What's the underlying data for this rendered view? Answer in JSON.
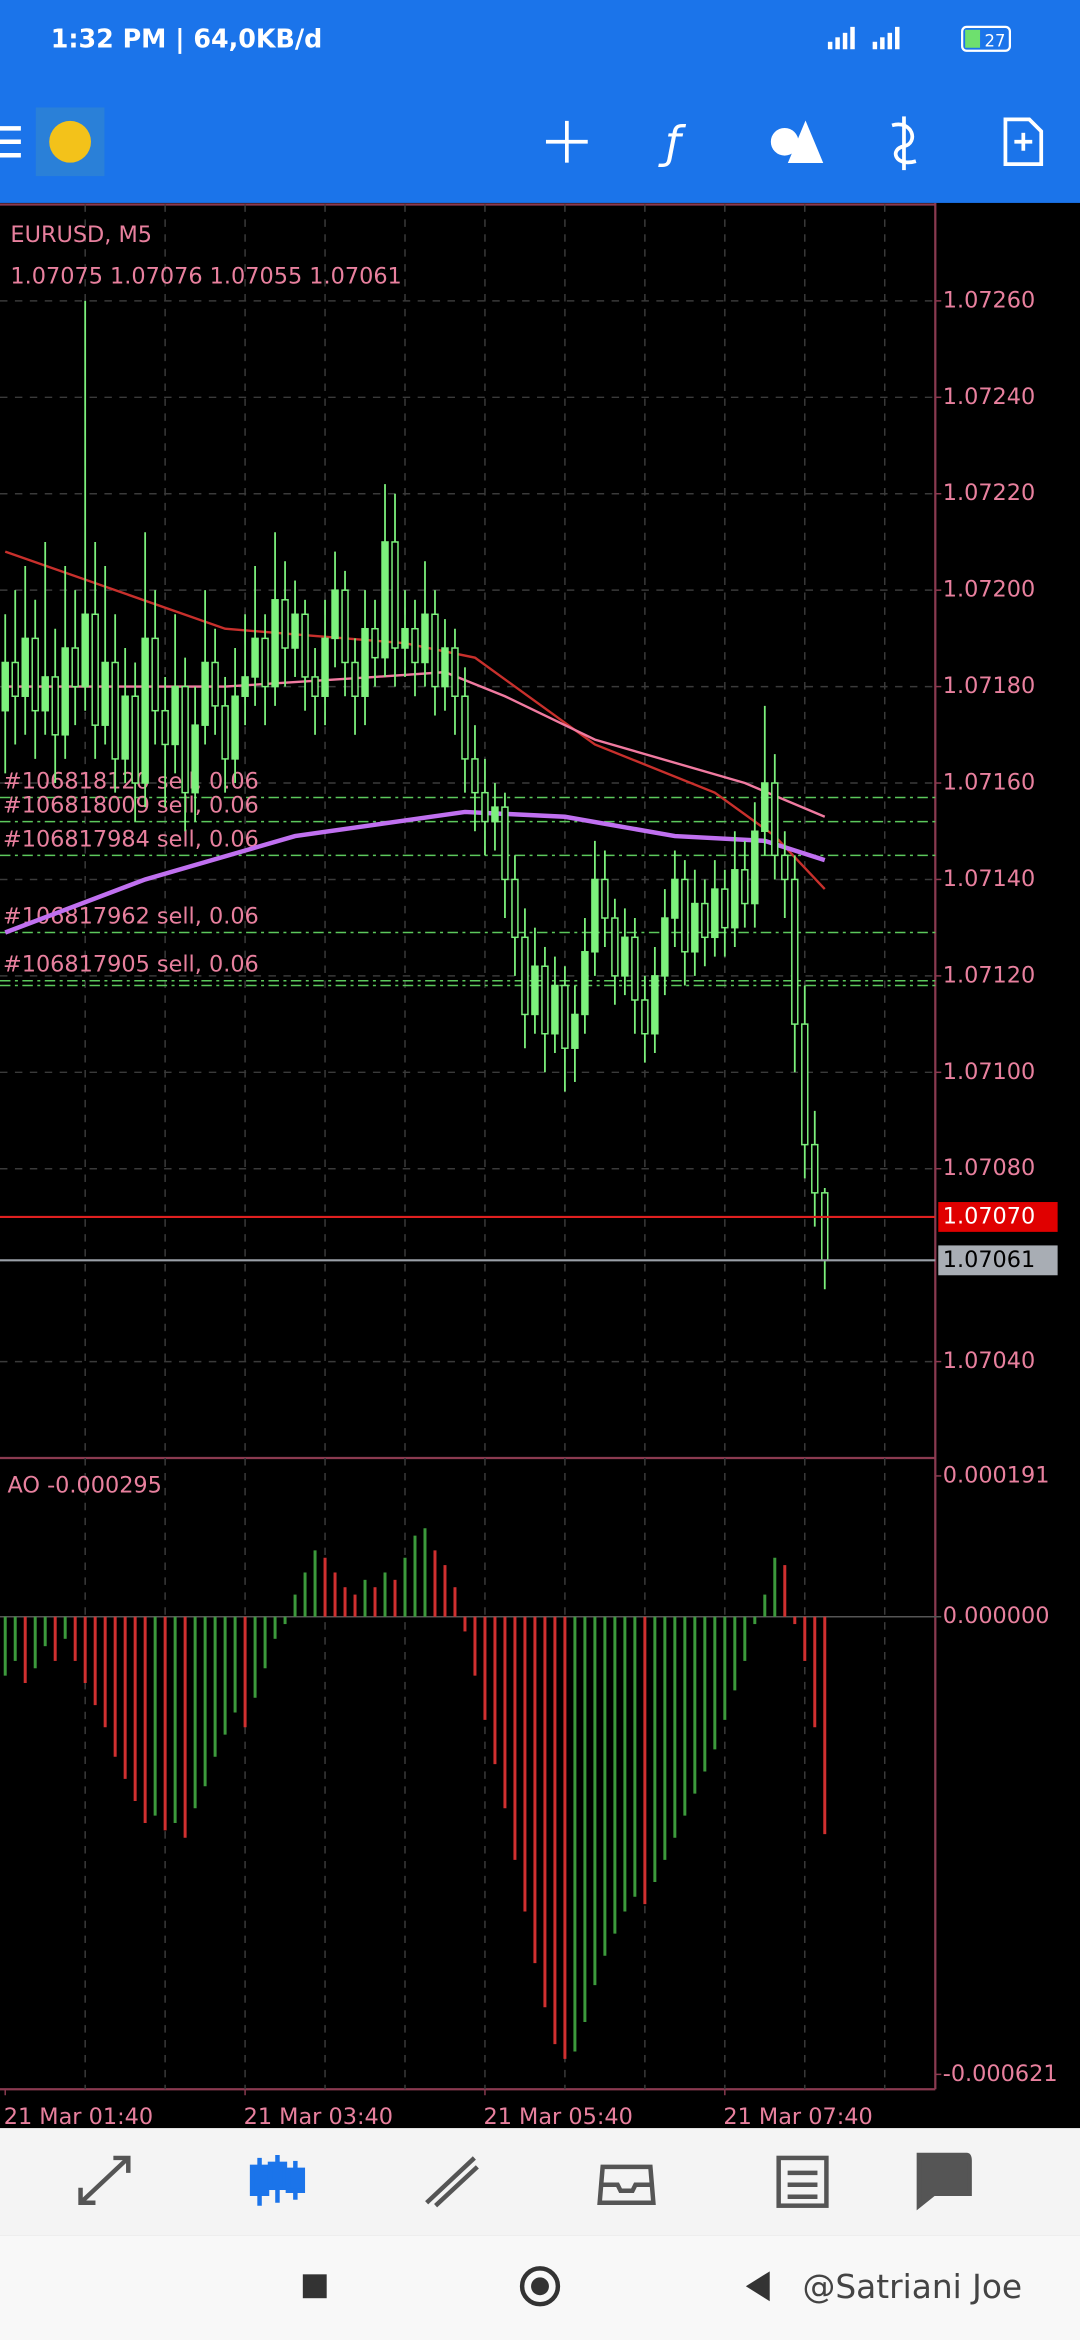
{
  "status_bar": {
    "time": "1:32 PM | 64,0KB/d",
    "battery": "27"
  },
  "chart": {
    "symbol": "EURUSD, M5",
    "ohlc_text": "1.07075 1.07076 1.07055 1.07061",
    "ylim": [
      1.0702,
      1.0728
    ],
    "yticks": [
      {
        "value": 1.0726,
        "label": "1.07260"
      },
      {
        "value": 1.0724,
        "label": "1.07240"
      },
      {
        "value": 1.0722,
        "label": "1.07220"
      },
      {
        "value": 1.072,
        "label": "1.07200"
      },
      {
        "value": 1.0718,
        "label": "1.07180"
      },
      {
        "value": 1.0716,
        "label": "1.07160"
      },
      {
        "value": 1.0714,
        "label": "1.07140"
      },
      {
        "value": 1.0712,
        "label": "1.07120"
      },
      {
        "value": 1.071,
        "label": "1.07100"
      },
      {
        "value": 1.0708,
        "label": "1.07080"
      },
      {
        "value": 1.0704,
        "label": "1.07040"
      }
    ],
    "candles": [
      [
        1.07175,
        1.07195,
        1.07162,
        1.07185
      ],
      [
        1.07185,
        1.072,
        1.07168,
        1.07178
      ],
      [
        1.07178,
        1.07205,
        1.0717,
        1.0719
      ],
      [
        1.0719,
        1.07198,
        1.07165,
        1.07175
      ],
      [
        1.07175,
        1.0721,
        1.0717,
        1.07182
      ],
      [
        1.07182,
        1.07192,
        1.0716,
        1.0717
      ],
      [
        1.0717,
        1.07205,
        1.07165,
        1.07188
      ],
      [
        1.07188,
        1.072,
        1.07172,
        1.0718
      ],
      [
        1.0718,
        1.0726,
        1.07175,
        1.07195
      ],
      [
        1.07195,
        1.0721,
        1.07165,
        1.07172
      ],
      [
        1.07172,
        1.07205,
        1.07168,
        1.07185
      ],
      [
        1.07185,
        1.07195,
        1.07158,
        1.07165
      ],
      [
        1.07165,
        1.07188,
        1.0716,
        1.07178
      ],
      [
        1.07178,
        1.07185,
        1.07152,
        1.0716
      ],
      [
        1.0716,
        1.07212,
        1.07155,
        1.0719
      ],
      [
        1.0719,
        1.072,
        1.07168,
        1.07175
      ],
      [
        1.07175,
        1.07182,
        1.07155,
        1.07168
      ],
      [
        1.07168,
        1.07195,
        1.07162,
        1.0718
      ],
      [
        1.0718,
        1.07186,
        1.0715,
        1.07158
      ],
      [
        1.07158,
        1.0718,
        1.07152,
        1.07172
      ],
      [
        1.07172,
        1.072,
        1.07168,
        1.07185
      ],
      [
        1.07185,
        1.07192,
        1.0717,
        1.07176
      ],
      [
        1.07176,
        1.07182,
        1.07158,
        1.07165
      ],
      [
        1.07165,
        1.07188,
        1.0716,
        1.07178
      ],
      [
        1.07178,
        1.07195,
        1.07172,
        1.07182
      ],
      [
        1.07182,
        1.07205,
        1.07176,
        1.0719
      ],
      [
        1.0719,
        1.07195,
        1.07172,
        1.0718
      ],
      [
        1.0718,
        1.07212,
        1.07176,
        1.07198
      ],
      [
        1.07198,
        1.07206,
        1.0718,
        1.07188
      ],
      [
        1.07188,
        1.07202,
        1.07182,
        1.07195
      ],
      [
        1.07195,
        1.07198,
        1.07175,
        1.07182
      ],
      [
        1.07182,
        1.07188,
        1.0717,
        1.07178
      ],
      [
        1.07178,
        1.07198,
        1.07172,
        1.0719
      ],
      [
        1.0719,
        1.07208,
        1.07184,
        1.072
      ],
      [
        1.072,
        1.07204,
        1.07178,
        1.07185
      ],
      [
        1.07185,
        1.0719,
        1.0717,
        1.07178
      ],
      [
        1.07178,
        1.072,
        1.07172,
        1.07192
      ],
      [
        1.07192,
        1.07198,
        1.0718,
        1.07186
      ],
      [
        1.07186,
        1.07222,
        1.07182,
        1.0721
      ],
      [
        1.0721,
        1.0722,
        1.0718,
        1.07188
      ],
      [
        1.07188,
        1.072,
        1.07182,
        1.07192
      ],
      [
        1.07192,
        1.07198,
        1.07178,
        1.07185
      ],
      [
        1.07185,
        1.07206,
        1.0718,
        1.07195
      ],
      [
        1.07195,
        1.072,
        1.07174,
        1.0718
      ],
      [
        1.0718,
        1.07194,
        1.07175,
        1.07188
      ],
      [
        1.07188,
        1.07192,
        1.0717,
        1.07178
      ],
      [
        1.07178,
        1.07184,
        1.07158,
        1.07165
      ],
      [
        1.07165,
        1.07172,
        1.0715,
        1.07158
      ],
      [
        1.07158,
        1.07165,
        1.07145,
        1.07152
      ],
      [
        1.07152,
        1.0716,
        1.07146,
        1.07155
      ],
      [
        1.07155,
        1.07158,
        1.07132,
        1.0714
      ],
      [
        1.0714,
        1.07145,
        1.0712,
        1.07128
      ],
      [
        1.07128,
        1.07134,
        1.07105,
        1.07112
      ],
      [
        1.07112,
        1.0713,
        1.07108,
        1.07122
      ],
      [
        1.07122,
        1.07126,
        1.071,
        1.07108
      ],
      [
        1.07108,
        1.07124,
        1.07104,
        1.07118
      ],
      [
        1.07118,
        1.07122,
        1.07096,
        1.07105
      ],
      [
        1.07105,
        1.07118,
        1.07098,
        1.07112
      ],
      [
        1.07112,
        1.07132,
        1.07108,
        1.07125
      ],
      [
        1.07125,
        1.07148,
        1.0712,
        1.0714
      ],
      [
        1.0714,
        1.07146,
        1.07126,
        1.07132
      ],
      [
        1.07132,
        1.07136,
        1.07114,
        1.0712
      ],
      [
        1.0712,
        1.07134,
        1.07116,
        1.07128
      ],
      [
        1.07128,
        1.07132,
        1.07108,
        1.07115
      ],
      [
        1.07115,
        1.0712,
        1.07102,
        1.07108
      ],
      [
        1.07108,
        1.07126,
        1.07104,
        1.0712
      ],
      [
        1.0712,
        1.07138,
        1.07116,
        1.07132
      ],
      [
        1.07132,
        1.07146,
        1.07126,
        1.0714
      ],
      [
        1.0714,
        1.07144,
        1.07118,
        1.07125
      ],
      [
        1.07125,
        1.07142,
        1.0712,
        1.07135
      ],
      [
        1.07135,
        1.0714,
        1.07122,
        1.07128
      ],
      [
        1.07128,
        1.07144,
        1.07124,
        1.07138
      ],
      [
        1.07138,
        1.07142,
        1.07124,
        1.0713
      ],
      [
        1.0713,
        1.0715,
        1.07126,
        1.07142
      ],
      [
        1.07142,
        1.07148,
        1.0713,
        1.07135
      ],
      [
        1.07135,
        1.07156,
        1.0713,
        1.0715
      ],
      [
        1.0715,
        1.07176,
        1.07145,
        1.0716
      ],
      [
        1.0716,
        1.07166,
        1.0714,
        1.07145
      ],
      [
        1.07145,
        1.0715,
        1.07132,
        1.0714
      ],
      [
        1.0714,
        1.07145,
        1.071,
        1.0711
      ],
      [
        1.0711,
        1.07118,
        1.07078,
        1.07085
      ],
      [
        1.07085,
        1.07092,
        1.07068,
        1.07075
      ],
      [
        1.07075,
        1.07076,
        1.07055,
        1.07061
      ]
    ],
    "moving_averages": [
      {
        "color": "#c8302c",
        "x": [
          0,
          22,
          40,
          47,
          59,
          71,
          77,
          82
        ],
        "values": [
          1.07208,
          1.07192,
          1.07189,
          1.07186,
          1.07168,
          1.07158,
          1.07149,
          1.07138
        ]
      },
      {
        "color": "#f07aa0",
        "x": [
          0,
          22,
          37,
          44,
          50,
          59,
          74,
          82
        ],
        "values": [
          1.0718,
          1.0718,
          1.07182,
          1.07183,
          1.07178,
          1.07169,
          1.0716,
          1.07153
        ]
      },
      {
        "color": "#c070f0",
        "x": [
          0,
          14,
          29,
          46,
          56,
          67,
          76,
          82
        ],
        "values": [
          1.07129,
          1.0714,
          1.07149,
          1.07154,
          1.07153,
          1.07149,
          1.07148,
          1.07144
        ]
      }
    ],
    "orders": [
      {
        "label": "#106818120 sell, 0.06",
        "price": 1.07157
      },
      {
        "label": "#106818009 sell, 0.06",
        "price": 1.07152
      },
      {
        "label": "#106817984 sell, 0.06",
        "price": 1.07145
      },
      {
        "label": "#106817962 sell, 0.06",
        "price": 1.07129
      },
      {
        "label": "#106817905 sell, 0.06",
        "price": 1.07119
      },
      {
        "label": null,
        "price": 1.07118
      }
    ],
    "ask": {
      "price": 1.0707,
      "label": "1.07070"
    },
    "bid": {
      "price": 1.07061,
      "label": "1.07061"
    },
    "time_axis": [
      {
        "label": "21 Mar 01:40",
        "index": 0
      },
      {
        "label": "21 Mar 03:40",
        "index": 24
      },
      {
        "label": "21 Mar 05:40",
        "index": 48
      },
      {
        "label": "21 Mar 07:40",
        "index": 72
      }
    ]
  },
  "indicator": {
    "title": "AO -0.000295",
    "ylim": [
      -0.000621,
      0.000191
    ],
    "yticks": [
      0.000191,
      {
        "value": 0,
        "label": "0.000000"
      },
      -0.000621
    ],
    "values": [
      -8e-05,
      -6e-05,
      -9e-05,
      -7e-05,
      -4e-05,
      -6e-05,
      -3e-05,
      -6e-05,
      -9e-05,
      -0.00012,
      -0.00015,
      -0.00019,
      -0.00022,
      -0.00025,
      -0.00028,
      -0.00027,
      -0.00029,
      -0.00028,
      -0.0003,
      -0.00026,
      -0.00023,
      -0.00019,
      -0.00016,
      -0.00013,
      -0.00015,
      -0.00011,
      -7e-05,
      -3e-05,
      -1e-05,
      3e-05,
      6e-05,
      9e-05,
      8e-05,
      6e-05,
      4e-05,
      3e-05,
      5e-05,
      4e-05,
      6e-05,
      5e-05,
      8e-05,
      0.00011,
      0.00012,
      9e-05,
      7e-05,
      4e-05,
      -2e-05,
      -8e-05,
      -0.00014,
      -0.0002,
      -0.00026,
      -0.00033,
      -0.0004,
      -0.00047,
      -0.00053,
      -0.00058,
      -0.0006,
      -0.00059,
      -0.00055,
      -0.0005,
      -0.00046,
      -0.00043,
      -0.0004,
      -0.00038,
      -0.00039,
      -0.00036,
      -0.00033,
      -0.0003,
      -0.00027,
      -0.00024,
      -0.00021,
      -0.00018,
      -0.00014,
      -0.0001,
      -6e-05,
      -1e-05,
      3e-05,
      8e-05,
      7e-05,
      -1e-05,
      -6e-05,
      -0.00015,
      -0.000295
    ]
  },
  "watermark": "@Satriani Joe"
}
